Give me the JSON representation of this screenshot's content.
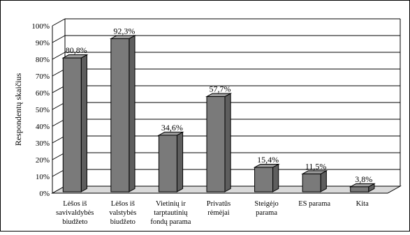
{
  "chart_data": {
    "type": "bar",
    "categories": [
      [
        "Lėšos iš",
        "savivaldybės",
        "biudžeto"
      ],
      [
        "Lėšos iš",
        "valstybės",
        "biudžeto"
      ],
      [
        "Vietinių ir",
        "tarptautinių",
        "fondų parama"
      ],
      [
        "Privatūs",
        "rėmėjai"
      ],
      [
        "Steigėjo",
        "parama"
      ],
      [
        "ES parama"
      ],
      [
        "Kita"
      ]
    ],
    "values": [
      80.8,
      92.3,
      34.6,
      57.7,
      15.4,
      11.5,
      3.8
    ],
    "value_labels": [
      "80,8%",
      "92,3%",
      "34,6%",
      "57,7%",
      "15,4%",
      "11,5%",
      "3,8%"
    ],
    "ylabel": "Respondentų skaičius",
    "ylim": [
      0,
      100
    ],
    "yticks": [
      "0%",
      "10%",
      "20%",
      "30%",
      "40%",
      "50%",
      "60%",
      "70%",
      "80%",
      "90%",
      "100%"
    ],
    "grid": true,
    "legend": "none",
    "colors": {
      "bar_front": "#7a7a7a",
      "bar_top": "#9c9c9c",
      "bar_side": "#5e5e5e",
      "floor": "#d9d9d9",
      "grid": "#000000"
    }
  }
}
